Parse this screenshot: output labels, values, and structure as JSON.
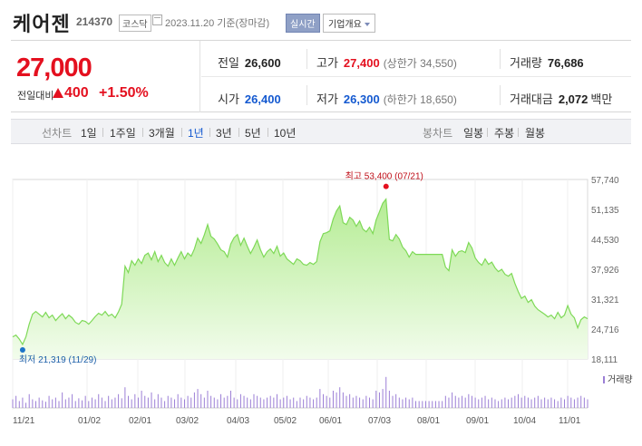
{
  "header": {
    "name": "케어젠",
    "code": "214370",
    "market": "코스닥",
    "date": "2023.11.20 기준(장마감)",
    "realtime": "실시간",
    "corp_info": "기업개요"
  },
  "summary": {
    "price": "27,000",
    "change_label": "전일대비",
    "change": "400",
    "pct": "+1.50%",
    "prev_close_label": "전일",
    "prev_close": "26,600",
    "high_label": "고가",
    "high": "27,400",
    "upper_limit": "(상한가 34,550)",
    "volume_label": "거래량",
    "volume": "76,686",
    "open_label": "시가",
    "open": "26,400",
    "low_label": "저가",
    "low": "26,300",
    "lower_limit": "(하한가 18,650)",
    "amount_label": "거래대금",
    "amount": "2,072",
    "amount_unit": "백만"
  },
  "periods": {
    "line_label": "선차트",
    "line_items": [
      "1일",
      "1주일",
      "3개월",
      "1년",
      "3년",
      "5년",
      "10년"
    ],
    "selected": "1년",
    "candle_label": "봉차트",
    "candle_items": [
      "일봉",
      "주봉",
      "월봉"
    ]
  },
  "chart_data": {
    "type": "area",
    "y_ticks": [
      "57,740",
      "51,135",
      "44,530",
      "37,926",
      "31,321",
      "24,716",
      "18,111"
    ],
    "ylim": [
      18111,
      57740
    ],
    "x_ticks": [
      "11/21",
      "01/02",
      "02/01",
      "03/02",
      "04/03",
      "05/02",
      "06/01",
      "07/03",
      "08/01",
      "09/01",
      "10/04",
      "11/01"
    ],
    "max_label": "최고 53,400 (07/21)",
    "min_label": "최저 21,319 (11/29)",
    "volume_legend": "거래량",
    "colors": {
      "line": "#7ed957",
      "fill_top": "#b5ec94",
      "fill_bottom": "#f2fcec",
      "max": "#e4101f",
      "min": "#1c74c8",
      "volume": "#9c7fd6"
    },
    "series": [
      23000,
      23400,
      22500,
      21319,
      23000,
      25800,
      28000,
      28600,
      28000,
      27400,
      28400,
      27200,
      27800,
      26600,
      27400,
      28100,
      27000,
      27800,
      27200,
      26200,
      25800,
      26600,
      26400,
      25800,
      26600,
      27500,
      28200,
      27800,
      28600,
      27600,
      28000,
      27200,
      28500,
      30200,
      38600,
      37200,
      39800,
      38800,
      40200,
      39200,
      41000,
      41500,
      40000,
      41800,
      39600,
      41000,
      39400,
      38600,
      40200,
      38800,
      40400,
      41800,
      40200,
      41500,
      40800,
      42400,
      44800,
      43600,
      45500,
      47800,
      45200,
      44600,
      43500,
      42200,
      41800,
      40600,
      43500,
      44900,
      45600,
      43200,
      44800,
      43000,
      41400,
      42800,
      44400,
      42200,
      40600,
      41800,
      42400,
      41400,
      43000,
      40800,
      41500,
      40200,
      39600,
      39000,
      40200,
      39800,
      39000,
      38800,
      39400,
      39000,
      39600,
      44000,
      45800,
      46000,
      46400,
      49000,
      50800,
      51900,
      48200,
      47800,
      49400,
      48800,
      47400,
      48600,
      46800,
      46200,
      47200,
      45800,
      48800,
      50600,
      52500,
      53400,
      44500,
      44200,
      45600,
      44600,
      42800,
      42000,
      40600,
      41800,
      41200,
      41200,
      41200,
      41200,
      41200,
      41200,
      41200,
      41200,
      41200,
      38400,
      37600,
      42200,
      40800,
      41800,
      42000,
      41600,
      43800,
      42600,
      40400,
      39400,
      38800,
      40200,
      39000,
      39500,
      38200,
      37400,
      37900,
      36800,
      36400,
      37000,
      34800,
      33000,
      31500,
      32000,
      30600,
      31200,
      29800,
      29000,
      28500,
      28000,
      27400,
      27800,
      27000,
      28400,
      27200,
      27800,
      29900,
      28000,
      27200,
      25000,
      26800,
      27400,
      27000
    ],
    "volumes": [
      0.25,
      0.35,
      0.2,
      0.3,
      0.15,
      0.4,
      0.25,
      0.2,
      0.3,
      0.22,
      0.18,
      0.35,
      0.25,
      0.3,
      0.2,
      0.45,
      0.25,
      0.3,
      0.4,
      0.2,
      0.28,
      0.22,
      0.35,
      0.2,
      0.3,
      0.25,
      0.4,
      0.3,
      0.2,
      0.35,
      0.25,
      0.3,
      0.4,
      0.28,
      0.6,
      0.35,
      0.25,
      0.4,
      0.3,
      0.5,
      0.35,
      0.3,
      0.45,
      0.25,
      0.4,
      0.3,
      0.2,
      0.35,
      0.3,
      0.25,
      0.4,
      0.3,
      0.25,
      0.35,
      0.3,
      0.45,
      0.55,
      0.4,
      0.3,
      0.5,
      0.35,
      0.3,
      0.25,
      0.4,
      0.3,
      0.35,
      0.5,
      0.3,
      0.25,
      0.4,
      0.35,
      0.3,
      0.25,
      0.4,
      0.35,
      0.3,
      0.25,
      0.3,
      0.35,
      0.3,
      0.4,
      0.25,
      0.3,
      0.35,
      0.25,
      0.3,
      0.2,
      0.3,
      0.25,
      0.35,
      0.3,
      0.25,
      0.3,
      0.55,
      0.4,
      0.35,
      0.3,
      0.5,
      0.45,
      0.6,
      0.45,
      0.35,
      0.4,
      0.3,
      0.35,
      0.3,
      0.25,
      0.35,
      0.3,
      0.25,
      0.5,
      0.45,
      0.55,
      0.9,
      0.5,
      0.35,
      0.4,
      0.3,
      0.25,
      0.3,
      0.25,
      0.3,
      0.2,
      0.2,
      0.2,
      0.2,
      0.2,
      0.2,
      0.2,
      0.2,
      0.2,
      0.35,
      0.3,
      0.45,
      0.35,
      0.3,
      0.35,
      0.3,
      0.4,
      0.35,
      0.3,
      0.25,
      0.3,
      0.35,
      0.25,
      0.3,
      0.25,
      0.2,
      0.25,
      0.3,
      0.25,
      0.3,
      0.35,
      0.4,
      0.3,
      0.35,
      0.3,
      0.25,
      0.3,
      0.35,
      0.25,
      0.3,
      0.25,
      0.3,
      0.25,
      0.2,
      0.3,
      0.25,
      0.35,
      0.3,
      0.25,
      0.3,
      0.35,
      0.3,
      0.25
    ]
  }
}
